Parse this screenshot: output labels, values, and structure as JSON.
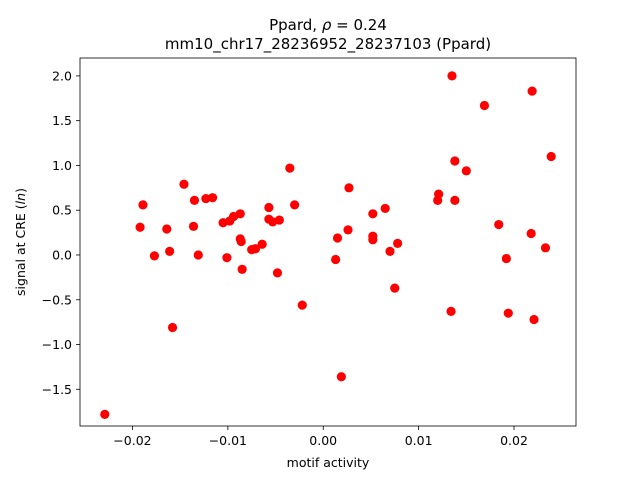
{
  "chart_data": {
    "type": "scatter",
    "title_line1_prefix": "Ppard, ",
    "title_line1_rho": "ρ",
    "title_line1_suffix": " = 0.24",
    "title_line2": "mm10_chr17_28236952_28237103 (Ppard)",
    "xlabel": "motif activity",
    "ylabel_prefix": "signal at CRE (",
    "ylabel_italic": "ln",
    "ylabel_suffix": ")",
    "xlim": [
      -0.0255,
      0.0265
    ],
    "ylim": [
      -1.91,
      2.2
    ],
    "xticks": [
      -0.02,
      -0.01,
      0.0,
      0.01,
      0.02
    ],
    "xtick_labels": [
      "−0.02",
      "−0.01",
      "0.00",
      "0.01",
      "0.02"
    ],
    "yticks": [
      -1.5,
      -1.0,
      -0.5,
      0.0,
      0.5,
      1.0,
      1.5,
      2.0
    ],
    "ytick_labels": [
      "−1.5",
      "−1.0",
      "−0.5",
      "0.0",
      "0.5",
      "1.0",
      "1.5",
      "2.0"
    ],
    "marker_color": "#ff0000",
    "grid": false,
    "points": [
      {
        "x": -0.0229,
        "y": -1.78
      },
      {
        "x": -0.0192,
        "y": 0.31
      },
      {
        "x": -0.0189,
        "y": 0.56
      },
      {
        "x": -0.0177,
        "y": -0.01
      },
      {
        "x": -0.0164,
        "y": 0.29
      },
      {
        "x": -0.0161,
        "y": 0.04
      },
      {
        "x": -0.0158,
        "y": -0.81
      },
      {
        "x": -0.0146,
        "y": 0.79
      },
      {
        "x": -0.0136,
        "y": 0.32
      },
      {
        "x": -0.0135,
        "y": 0.61
      },
      {
        "x": -0.0131,
        "y": 0.0
      },
      {
        "x": -0.0123,
        "y": 0.63
      },
      {
        "x": -0.0116,
        "y": 0.64
      },
      {
        "x": -0.0105,
        "y": 0.36
      },
      {
        "x": -0.0101,
        "y": -0.03
      },
      {
        "x": -0.0098,
        "y": 0.38
      },
      {
        "x": -0.0094,
        "y": 0.43
      },
      {
        "x": -0.0087,
        "y": 0.46
      },
      {
        "x": -0.0087,
        "y": 0.18
      },
      {
        "x": -0.0086,
        "y": 0.15
      },
      {
        "x": -0.0085,
        "y": -0.16
      },
      {
        "x": -0.0075,
        "y": 0.06
      },
      {
        "x": -0.0071,
        "y": 0.07
      },
      {
        "x": -0.0064,
        "y": 0.12
      },
      {
        "x": -0.0057,
        "y": 0.53
      },
      {
        "x": -0.0057,
        "y": 0.4
      },
      {
        "x": -0.0053,
        "y": 0.37
      },
      {
        "x": -0.0048,
        "y": -0.2
      },
      {
        "x": -0.0046,
        "y": 0.39
      },
      {
        "x": -0.0035,
        "y": 0.97
      },
      {
        "x": -0.003,
        "y": 0.56
      },
      {
        "x": -0.0022,
        "y": -0.56
      },
      {
        "x": 0.0013,
        "y": -0.05
      },
      {
        "x": 0.0015,
        "y": 0.19
      },
      {
        "x": 0.0019,
        "y": -1.36
      },
      {
        "x": 0.0026,
        "y": 0.28
      },
      {
        "x": 0.0027,
        "y": 0.75
      },
      {
        "x": 0.0052,
        "y": 0.21
      },
      {
        "x": 0.0052,
        "y": 0.17
      },
      {
        "x": 0.0052,
        "y": 0.46
      },
      {
        "x": 0.0065,
        "y": 0.52
      },
      {
        "x": 0.007,
        "y": 0.04
      },
      {
        "x": 0.0075,
        "y": -0.37
      },
      {
        "x": 0.0078,
        "y": 0.13
      },
      {
        "x": 0.012,
        "y": 0.61
      },
      {
        "x": 0.0121,
        "y": 0.68
      },
      {
        "x": 0.0134,
        "y": -0.63
      },
      {
        "x": 0.0135,
        "y": 2.0
      },
      {
        "x": 0.0138,
        "y": 1.05
      },
      {
        "x": 0.0138,
        "y": 0.61
      },
      {
        "x": 0.015,
        "y": 0.94
      },
      {
        "x": 0.0169,
        "y": 1.67
      },
      {
        "x": 0.0184,
        "y": 0.34
      },
      {
        "x": 0.0192,
        "y": -0.04
      },
      {
        "x": 0.0194,
        "y": -0.65
      },
      {
        "x": 0.0218,
        "y": 0.24
      },
      {
        "x": 0.0219,
        "y": 1.83
      },
      {
        "x": 0.0221,
        "y": -0.72
      },
      {
        "x": 0.0233,
        "y": 0.08
      },
      {
        "x": 0.0239,
        "y": 1.1
      }
    ]
  }
}
